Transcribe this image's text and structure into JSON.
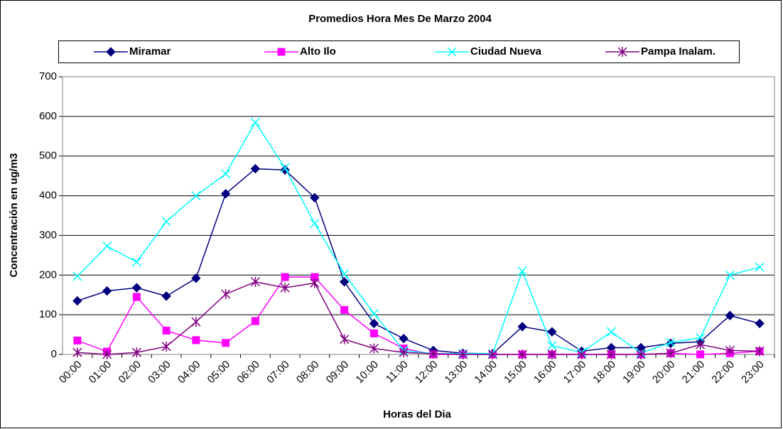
{
  "chart_data": {
    "type": "line",
    "title": "Promedios Hora Mes De Marzo 2004",
    "x_label": "Horas del Dia",
    "y_label": "Concentración en ug/m3",
    "categories": [
      "00:00",
      "01:00",
      "02:00",
      "03:00",
      "04:00",
      "05:00",
      "06:00",
      "07:00",
      "08:00",
      "09:00",
      "10:00",
      "11:00",
      "12:00",
      "13:00",
      "14:00",
      "15:00",
      "16:00",
      "17:00",
      "18:00",
      "19:00",
      "20:00",
      "21:00",
      "22:00",
      "23:00"
    ],
    "series": [
      {
        "name": "Miramar",
        "color": "#000080",
        "marker": "diamond",
        "values": [
          135,
          160,
          168,
          147,
          192,
          405,
          468,
          465,
          395,
          183,
          78,
          40,
          10,
          3,
          2,
          70,
          57,
          8,
          17,
          17,
          28,
          32,
          98,
          78
        ]
      },
      {
        "name": "Alto Ilo",
        "color": "#ff00ff",
        "marker": "square",
        "values": [
          35,
          7,
          145,
          60,
          36,
          29,
          84,
          195,
          195,
          112,
          53,
          15,
          0,
          0,
          0,
          0,
          0,
          0,
          0,
          0,
          3,
          0,
          3,
          8
        ]
      },
      {
        "name": "Ciudad Nueva",
        "color": "#00ffff",
        "marker": "x",
        "values": [
          197,
          273,
          233,
          335,
          400,
          455,
          585,
          470,
          330,
          203,
          103,
          10,
          2,
          2,
          2,
          210,
          22,
          5,
          57,
          3,
          30,
          42,
          200,
          220
        ]
      },
      {
        "name": "Pampa Inalam.",
        "color": "#800080",
        "marker": "star",
        "values": [
          5,
          0,
          5,
          20,
          82,
          152,
          183,
          168,
          180,
          38,
          15,
          5,
          2,
          0,
          0,
          0,
          0,
          0,
          0,
          0,
          3,
          25,
          10,
          8
        ]
      }
    ],
    "ylim": [
      0,
      700
    ],
    "yticks": [
      0,
      100,
      200,
      300,
      400,
      500,
      600,
      700
    ],
    "grid": true,
    "legend": "top"
  }
}
